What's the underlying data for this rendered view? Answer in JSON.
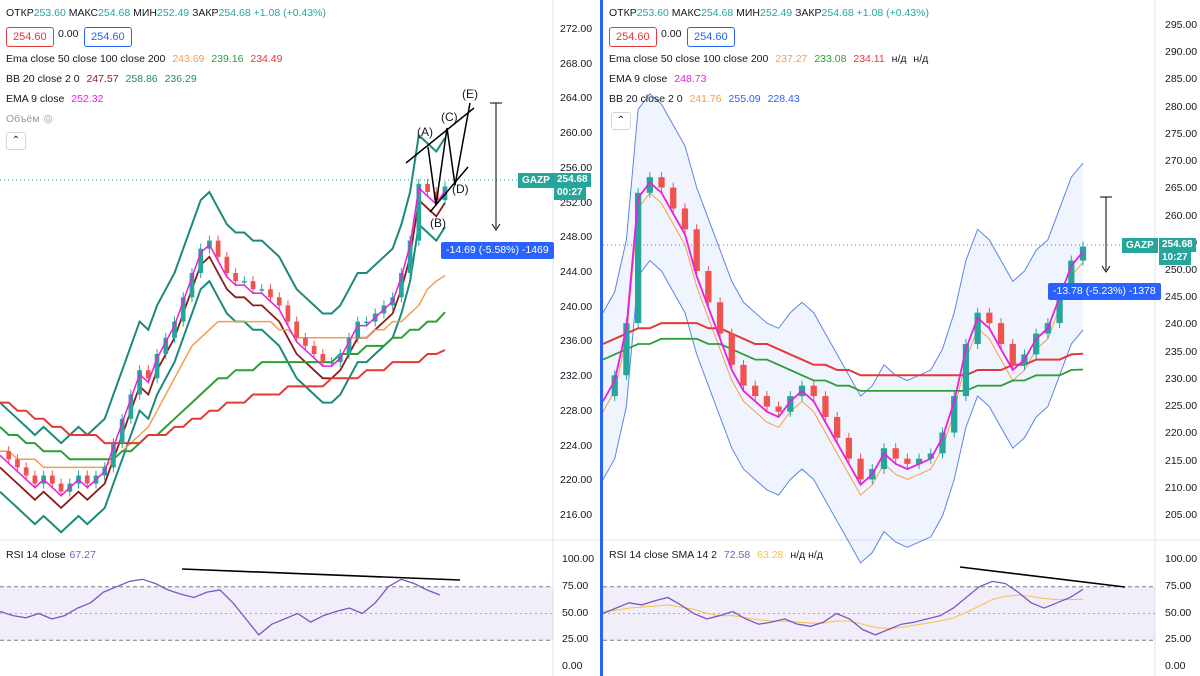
{
  "left": {
    "header": {
      "open_lbl": "ОТКР",
      "open": "253.60",
      "high_lbl": "МАКС",
      "high": "254.68",
      "low_lbl": "МИН",
      "low": "252.49",
      "close_lbl": "ЗАКР",
      "close": "254.68",
      "chg": "+1.08 (+0.43%)"
    },
    "sell_price": "254.60",
    "spread": "0.00",
    "buy_price": "254.60",
    "legend": [
      {
        "label": "Ema close 50 close 100 close 200",
        "values": [
          {
            "v": "243.69",
            "color": "#f59d4b"
          },
          {
            "v": "239.16",
            "color": "#2e9e36"
          },
          {
            "v": "234.49",
            "color": "#e53935"
          }
        ]
      },
      {
        "label": "BB 20 close 2 0",
        "values": [
          {
            "v": "247.57",
            "color": "#8b1a1a"
          },
          {
            "v": "258.86",
            "color": "#1b8a7a"
          },
          {
            "v": "236.29",
            "color": "#1b8a7a"
          }
        ]
      },
      {
        "label": "EMA 9 close",
        "values": [
          {
            "v": "252.32",
            "color": "#e91ee0"
          }
        ]
      },
      {
        "label": "Объём",
        "values": []
      }
    ],
    "price_axis": [
      "272.00",
      "268.00",
      "264.00",
      "260.00",
      "256.00",
      "252.00",
      "248.00",
      "244.00",
      "240.00",
      "236.00",
      "232.00",
      "228.00",
      "224.00",
      "220.00",
      "216.00"
    ],
    "ticker": "GAZP",
    "ticker_price": "254.68",
    "ticker_time": "00:27",
    "measure": "-14.69 (-5.58%) -1469",
    "waves": [
      "(A)",
      "(B)",
      "(C)",
      "(D)",
      "(E)"
    ],
    "rsi_label": "RSI 14 close",
    "rsi_value": "67.27",
    "rsi_axis": [
      "100.00",
      "75.00",
      "50.00",
      "25.00",
      "0.00"
    ]
  },
  "right": {
    "header": {
      "open_lbl": "ОТКР",
      "open": "253.60",
      "high_lbl": "МАКС",
      "high": "254.68",
      "low_lbl": "МИН",
      "low": "252.49",
      "close_lbl": "ЗАКР",
      "close": "254.68",
      "chg": "+1.08 (+0.43%)"
    },
    "sell_price": "254.60",
    "spread": "0.00",
    "buy_price": "254.60",
    "legend": [
      {
        "label": "Ema close 50 close 100 close 200",
        "values": [
          {
            "v": "237.27",
            "color": "#f59d4b"
          },
          {
            "v": "233.08",
            "color": "#2e9e36"
          },
          {
            "v": "234.11",
            "color": "#e53935"
          },
          {
            "v": "н/д",
            "color": "#131722"
          },
          {
            "v": "н/д",
            "color": "#131722"
          }
        ]
      },
      {
        "label": "EMA 9 close",
        "values": [
          {
            "v": "248.73",
            "color": "#e91ee0"
          }
        ]
      },
      {
        "label": "BB 20 close 2 0",
        "values": [
          {
            "v": "241.76",
            "color": "#f59d4b"
          },
          {
            "v": "255.09",
            "color": "#2962ff"
          },
          {
            "v": "228.43",
            "color": "#2962ff"
          }
        ]
      }
    ],
    "price_axis": [
      "295.00",
      "290.00",
      "285.00",
      "280.00",
      "275.00",
      "270.00",
      "265.00",
      "260.00",
      "255.00",
      "250.00",
      "245.00",
      "240.00",
      "235.00",
      "230.00",
      "225.00",
      "220.00",
      "215.00",
      "210.00",
      "205.00"
    ],
    "ticker": "GAZP",
    "ticker_price": "254.68",
    "ticker_time": "10:27",
    "measure": "-13.78 (-5.23%) -1378",
    "rsi_label": "RSI 14 close SMA 14 2",
    "rsi_value": "72.58",
    "rsi_sma": "63.28",
    "rsi_na": "н/д н/д",
    "rsi_axis": [
      "100.00",
      "75.00",
      "50.00",
      "25.00",
      "0.00"
    ]
  },
  "chart_data": [
    {
      "type": "line",
      "title": "",
      "ylim": [
        214,
        274
      ],
      "series": [
        {
          "name": "Price",
          "values": [
            222,
            221,
            220,
            219,
            218,
            219,
            218,
            217,
            218,
            219,
            218,
            219,
            220,
            223,
            226,
            229,
            232,
            231,
            234,
            236,
            238,
            241,
            244,
            247,
            248,
            246,
            244,
            243,
            243,
            242,
            242,
            241,
            240,
            238,
            236,
            235,
            234,
            233,
            233,
            234,
            236,
            238,
            238,
            239,
            240,
            241,
            244,
            248,
            255,
            254,
            253,
            254.68
          ]
        },
        {
          "name": "EMA 50",
          "values": [
            222,
            222,
            221,
            221,
            221,
            220,
            220,
            220,
            220,
            220,
            220,
            220,
            220,
            221,
            222,
            223,
            224,
            225,
            227,
            229,
            231,
            233,
            235,
            236,
            237,
            238,
            238,
            238,
            238,
            238,
            238,
            238,
            237,
            237,
            236,
            236,
            236,
            236,
            236,
            236,
            236,
            236,
            236,
            237,
            237,
            238,
            238,
            239,
            240,
            242,
            243,
            243.69
          ]
        },
        {
          "name": "EMA 100",
          "values": [
            225,
            224,
            224,
            223,
            223,
            222,
            222,
            222,
            221,
            221,
            221,
            221,
            221,
            221,
            222,
            222,
            223,
            224,
            224,
            225,
            226,
            227,
            228,
            229,
            230,
            231,
            231,
            232,
            232,
            232,
            233,
            233,
            233,
            233,
            233,
            233,
            233,
            233,
            233,
            234,
            234,
            234,
            235,
            235,
            235,
            236,
            236,
            237,
            237,
            238,
            238,
            239.16
          ]
        },
        {
          "name": "EMA 200",
          "values": [
            228,
            228,
            227,
            227,
            226,
            226,
            225,
            225,
            224,
            224,
            224,
            224,
            223,
            223,
            223,
            223,
            223,
            224,
            224,
            224,
            225,
            225,
            226,
            226,
            227,
            227,
            228,
            228,
            228,
            229,
            229,
            229,
            229,
            230,
            230,
            230,
            230,
            230,
            231,
            231,
            231,
            231,
            232,
            232,
            232,
            233,
            233,
            233,
            233,
            234,
            234,
            234.49
          ]
        }
      ]
    },
    {
      "type": "line",
      "title": "",
      "ylim": [
        203,
        297
      ],
      "series": [
        {
          "name": "Price",
          "values": [
            226,
            230,
            240,
            265,
            268,
            266,
            262,
            258,
            250,
            244,
            238,
            232,
            228,
            226,
            224,
            223,
            226,
            228,
            226,
            222,
            218,
            214,
            210,
            212,
            216,
            214,
            213,
            214,
            215,
            219,
            226,
            236,
            242,
            240,
            236,
            232,
            234,
            238,
            240,
            246,
            252,
            254.68
          ]
        },
        {
          "name": "EMA 200",
          "values": [
            236,
            237,
            238,
            239,
            239,
            240,
            240,
            240,
            240,
            239,
            239,
            238,
            237,
            236,
            236,
            235,
            234,
            233,
            232,
            232,
            231,
            231,
            230,
            230,
            230,
            230,
            230,
            230,
            230,
            230,
            230,
            230,
            231,
            231,
            231,
            232,
            232,
            233,
            233,
            233,
            234,
            234.11
          ]
        }
      ]
    },
    {
      "type": "line",
      "title": "",
      "ylim": [
        0,
        100
      ],
      "series": [
        {
          "name": "RSI",
          "values": [
            52,
            48,
            46,
            50,
            45,
            48,
            55,
            60,
            70,
            75,
            80,
            82,
            78,
            72,
            68,
            65,
            70,
            72,
            60,
            45,
            30,
            40,
            45,
            50,
            42,
            48,
            52,
            55,
            50,
            60,
            75,
            82,
            78,
            72,
            67.27
          ]
        }
      ]
    },
    {
      "type": "line",
      "title": "",
      "ylim": [
        0,
        100
      ],
      "series": [
        {
          "name": "RSI",
          "values": [
            50,
            55,
            60,
            58,
            62,
            65,
            58,
            50,
            45,
            48,
            52,
            45,
            40,
            42,
            45,
            40,
            38,
            42,
            50,
            45,
            35,
            30,
            35,
            40,
            42,
            45,
            48,
            55,
            65,
            75,
            80,
            78,
            70,
            60,
            55,
            60,
            65,
            72.58
          ]
        },
        {
          "name": "SMA",
          "values": [
            52,
            53,
            55,
            56,
            57,
            58,
            56,
            54,
            50,
            48,
            48,
            46,
            44,
            43,
            43,
            42,
            41,
            41,
            43,
            43,
            40,
            37,
            36,
            37,
            39,
            41,
            43,
            46,
            51,
            57,
            63,
            66,
            67,
            66,
            64,
            63,
            63,
            63.28
          ]
        }
      ]
    }
  ]
}
